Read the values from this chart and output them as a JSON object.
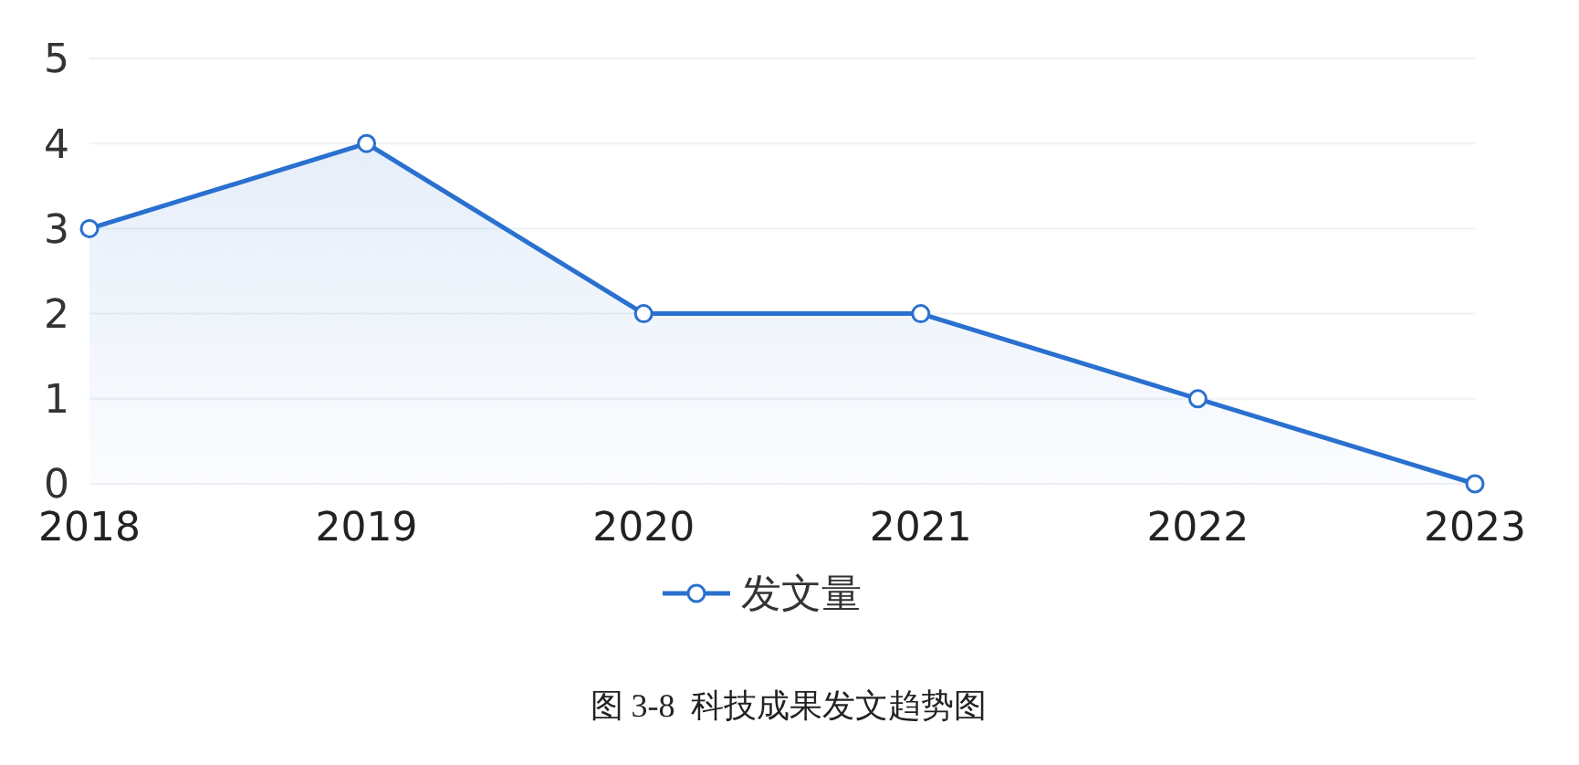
{
  "chart_data": {
    "type": "area",
    "title": "图 3-8  科技成果发文趋势图",
    "categories": [
      "2018",
      "2019",
      "2020",
      "2021",
      "2022",
      "2023"
    ],
    "series": [
      {
        "name": "发文量",
        "color": "#2a70cf",
        "values": [
          3,
          4,
          2,
          2,
          1,
          0
        ]
      }
    ],
    "ylim": [
      0,
      5
    ],
    "yticks": [
      0,
      1,
      2,
      3,
      4,
      5
    ],
    "grid": "y",
    "legend": "bottom",
    "marker": "circle",
    "line_style": "solid"
  }
}
